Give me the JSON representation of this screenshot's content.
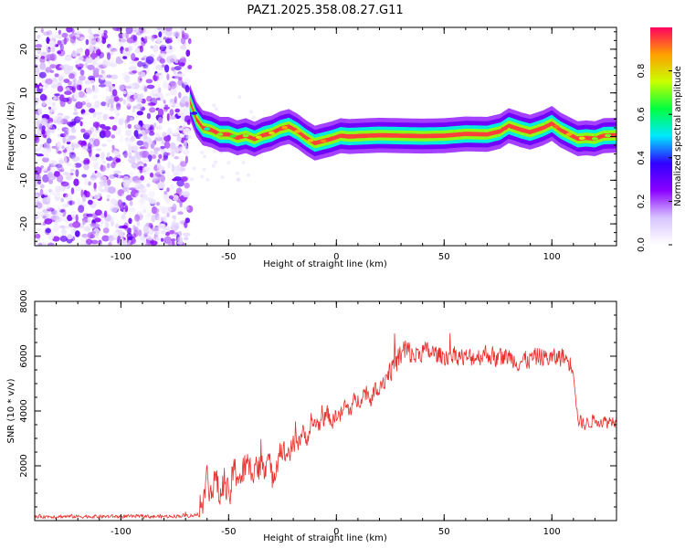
{
  "title": "PAZ1.2025.358.08.27.G11",
  "chart_data": [
    {
      "type": "heatmap",
      "name": "spectrogram",
      "xlabel": "Height of straight line (km)",
      "ylabel": "Frequency (Hz)",
      "xlim": [
        -140,
        130
      ],
      "ylim": [
        -25,
        25
      ],
      "xticks": [
        "-100",
        "-50",
        "0",
        "50",
        "100"
      ],
      "xtick_values": [
        -100,
        -50,
        0,
        50,
        100
      ],
      "yticks": [
        "20",
        "10",
        "0",
        "-10",
        "-20"
      ],
      "ytick_values": [
        20,
        10,
        0,
        -10,
        -20
      ],
      "noise_region_x": [
        -140,
        -68
      ],
      "signal_ridge": {
        "x": [
          -68,
          -65,
          -62,
          -58,
          -54,
          -50,
          -46,
          -42,
          -38,
          -34,
          -30,
          -26,
          -22,
          -18,
          -14,
          -10,
          -6,
          -2,
          2,
          6,
          10,
          20,
          30,
          40,
          50,
          60,
          70,
          76,
          80,
          86,
          90,
          96,
          100,
          104,
          108,
          112,
          116,
          120,
          124,
          130
        ],
        "y_hz": [
          8,
          4,
          2,
          1.5,
          0.5,
          0.5,
          -0.3,
          0.2,
          -0.6,
          0.3,
          0.8,
          1.8,
          2.3,
          1.2,
          -0.3,
          -1.5,
          -1.0,
          -0.5,
          0.2,
          0.0,
          0.1,
          0.3,
          0.2,
          0.1,
          0.2,
          0.6,
          0.5,
          1.2,
          2.5,
          1.5,
          1.0,
          2.0,
          3.0,
          1.5,
          0.5,
          -0.5,
          -0.3,
          -0.5,
          0.2,
          0.3
        ],
        "amplitude": [
          0.3,
          0.4,
          0.5,
          0.6,
          0.7,
          0.6,
          0.7,
          0.7,
          0.75,
          0.8,
          0.8,
          0.85,
          0.9,
          0.85,
          0.8,
          0.85,
          0.9,
          0.95,
          0.95,
          0.95,
          0.95,
          0.95,
          0.95,
          0.95,
          0.95,
          0.95,
          0.95,
          0.95,
          0.95,
          0.95,
          0.95,
          0.95,
          0.95,
          0.9,
          0.85,
          0.8,
          0.75,
          0.7,
          0.7,
          0.7
        ]
      }
    },
    {
      "type": "colorbar",
      "name": "amplitude-colorbar",
      "label": "Normalized spectral amplitude",
      "range": [
        0,
        1
      ],
      "ticks": [
        "0.0",
        "0.2",
        "0.4",
        "0.6",
        "0.8"
      ],
      "tick_values": [
        0,
        0.2,
        0.4,
        0.6,
        0.8
      ],
      "colors": [
        "#ffffff",
        "#d8c4ff",
        "#8a00ff",
        "#3000ff",
        "#00e8ff",
        "#00ff40",
        "#c8ff00",
        "#ffa000",
        "#ff0060"
      ]
    },
    {
      "type": "line",
      "name": "snr",
      "xlabel": "Height of straight line (km)",
      "ylabel": "SNR (10 * v/v)",
      "xlim": [
        -140,
        130
      ],
      "ylim": [
        0,
        8000
      ],
      "xticks": [
        "-100",
        "-50",
        "0",
        "50",
        "100"
      ],
      "xtick_values": [
        -100,
        -50,
        0,
        50,
        100
      ],
      "yticks": [
        "8000",
        "6000",
        "4000",
        "2000"
      ],
      "ytick_values": [
        8000,
        6000,
        4000,
        2000
      ],
      "color": "#e8302c",
      "series": [
        {
          "name": "SNR",
          "x": [
            -140,
            -120,
            -100,
            -80,
            -65,
            -62,
            -60,
            -58,
            -56,
            -54,
            -52,
            -50,
            -48,
            -46,
            -44,
            -42,
            -40,
            -38,
            -36,
            -34,
            -32,
            -30,
            -28,
            -26,
            -24,
            -22,
            -20,
            -18,
            -16,
            -14,
            -12,
            -10,
            -8,
            -6,
            -4,
            -2,
            0,
            2,
            4,
            6,
            8,
            10,
            12,
            14,
            16,
            18,
            20,
            22,
            24,
            26,
            28,
            30,
            32,
            34,
            36,
            40,
            45,
            50,
            55,
            60,
            65,
            70,
            75,
            80,
            85,
            90,
            95,
            100,
            105,
            108,
            110,
            112,
            115,
            120,
            125,
            130
          ],
          "y": [
            150,
            150,
            150,
            150,
            200,
            600,
            1600,
            1000,
            1600,
            800,
            1500,
            700,
            1700,
            1800,
            1500,
            2000,
            1800,
            2200,
            1900,
            2100,
            2300,
            1500,
            2100,
            2700,
            2400,
            2500,
            2700,
            2900,
            3200,
            3000,
            3300,
            3600,
            3500,
            3700,
            3900,
            3600,
            3900,
            3800,
            4200,
            4000,
            4300,
            4400,
            4600,
            4700,
            4400,
            4800,
            5000,
            5100,
            5400,
            5600,
            5800,
            6000,
            6200,
            6100,
            6000,
            6200,
            6100,
            6000,
            6100,
            5900,
            6000,
            6100,
            5900,
            6000,
            5800,
            5900,
            6000,
            5900,
            6000,
            5800,
            5600,
            3700,
            3500,
            3700,
            3600,
            3700
          ],
          "noise_amplitude": [
            80,
            80,
            80,
            80,
            80,
            500,
            700,
            700,
            700,
            700,
            700,
            800,
            800,
            800,
            800,
            800,
            800,
            800,
            800,
            800,
            800,
            700,
            700,
            600,
            600,
            500,
            500,
            500,
            500,
            400,
            400,
            400,
            400,
            400,
            400,
            400,
            400,
            400,
            400,
            400,
            400,
            400,
            400,
            400,
            400,
            400,
            500,
            500,
            500,
            500,
            600,
            700,
            800,
            600,
            500,
            450,
            450,
            450,
            450,
            450,
            450,
            450,
            450,
            450,
            450,
            450,
            450,
            450,
            450,
            450,
            400,
            300,
            300,
            300,
            300,
            300
          ]
        }
      ]
    }
  ]
}
